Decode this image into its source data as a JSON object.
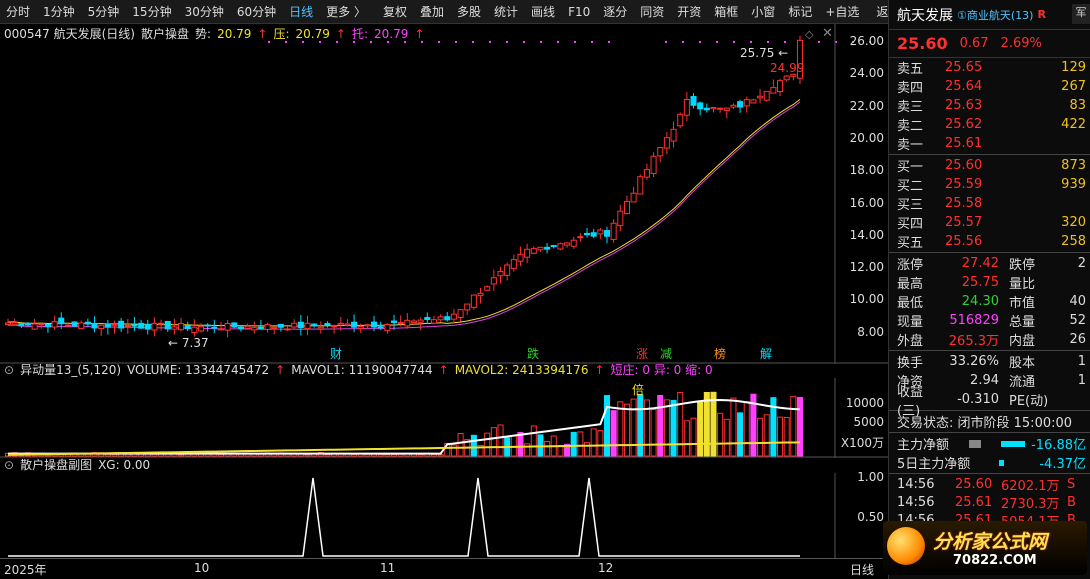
{
  "toolbar": {
    "items": [
      "分时",
      "1分钟",
      "5分钟",
      "15分钟",
      "30分钟",
      "60分钟",
      "日线",
      "更多 〉",
      "复权",
      "叠加",
      "多股",
      "统计",
      "画线",
      "F10",
      "逐分",
      "同资",
      "开资",
      "箱框",
      "小窗",
      "标记",
      "+自选",
      "返回"
    ]
  },
  "main_panel": {
    "code_title": "000547 航天发展(日线)",
    "indicator": "散户操盘",
    "shi_label": "势:",
    "shi_value": "20.79",
    "ya_label": "压:",
    "ya_value": "20.79",
    "tuo_label": "托:",
    "tuo_value": "20.79",
    "y_ticks": [
      "26.00",
      "24.00",
      "22.00",
      "20.00",
      "18.00",
      "16.00",
      "14.00",
      "12.00",
      "10.00",
      "8.00"
    ],
    "high_label": "25.75",
    "last_label": "24.99",
    "low_label": "7.37",
    "markers": [
      "财",
      "跌",
      "涨",
      "减",
      "榜",
      "解"
    ]
  },
  "volume_panel": {
    "title": "异动量13_(5,120)",
    "volume_label": "VOLUME: 13344745472",
    "mavol1_label": "MAVOL1: 11190047744",
    "mavol2_label": "MAVOL2: 2413394176",
    "extra_label": "短庄: 0  异: 0  缩: 0",
    "y_ticks": [
      "10000",
      "5000",
      "X100万"
    ],
    "bei_label": "倍"
  },
  "sub_panel": {
    "title": "散户操盘副图",
    "xg_label": "XG: 0.00",
    "y_ticks": [
      "1.00",
      "0.50"
    ]
  },
  "x_axis": {
    "labels": [
      "2025年",
      "10",
      "11",
      "12"
    ],
    "period": "日线"
  },
  "quote": {
    "name": "航天发展",
    "tag": "①商业航天(13)",
    "r_badge": "R",
    "side_btn": "军",
    "price": "25.60",
    "change": "0.67",
    "pct": "2.69%",
    "asks": [
      {
        "label": "卖五",
        "price": "25.65",
        "vol": "129"
      },
      {
        "label": "卖四",
        "price": "25.64",
        "vol": "267"
      },
      {
        "label": "卖三",
        "price": "25.63",
        "vol": "83"
      },
      {
        "label": "卖二",
        "price": "25.62",
        "vol": "422"
      },
      {
        "label": "卖一",
        "price": "25.61",
        "vol": ""
      }
    ],
    "bids": [
      {
        "label": "买一",
        "price": "25.60",
        "vol": "873"
      },
      {
        "label": "买二",
        "price": "25.59",
        "vol": "939"
      },
      {
        "label": "买三",
        "price": "25.58",
        "vol": ""
      },
      {
        "label": "买四",
        "price": "25.57",
        "vol": "320"
      },
      {
        "label": "买五",
        "price": "25.56",
        "vol": "258"
      }
    ],
    "stats": [
      {
        "l": "涨停",
        "v": "27.42",
        "l2": "跌停",
        "v2": "2"
      },
      {
        "l": "最高",
        "v": "25.75",
        "l2": "量比",
        "v2": ""
      },
      {
        "l": "最低",
        "v": "24.30",
        "l2": "市值",
        "v2": "40"
      },
      {
        "l": "现量",
        "v": "516829",
        "l2": "总量",
        "v2": "52"
      },
      {
        "l": "外盘",
        "v": "265.3万",
        "l2": "内盘",
        "v2": "26"
      }
    ],
    "stats2": [
      {
        "l": "换手",
        "v": "33.26%",
        "l2": "股本",
        "v2": "1"
      },
      {
        "l": "净资",
        "v": "2.94",
        "l2": "流通",
        "v2": "1"
      },
      {
        "l": "收益(三)",
        "v": "-0.310",
        "l2": "PE(动)",
        "v2": ""
      }
    ],
    "trade_status": "交易状态: 闭市阶段 15:00:00",
    "main_flow_label": "主力净额",
    "main_flow_value": "-16.88亿",
    "flow5_label": "5日主力净额",
    "flow5_value": "-4.37亿",
    "ticks": [
      {
        "t": "14:56",
        "p": "25.60",
        "v": "6202.1万",
        "d": "S"
      },
      {
        "t": "14:56",
        "p": "25.61",
        "v": "2730.3万",
        "d": "B"
      },
      {
        "t": "14:56",
        "p": "25.61",
        "v": "5954.1万",
        "d": "B"
      }
    ]
  },
  "logo": {
    "text": "分析家公式网",
    "url": "70822.COM"
  },
  "colors": {
    "up": "#ff3030",
    "down": "#00e0ff",
    "ma": "#e040e0",
    "accent": "#4fc3ff"
  }
}
